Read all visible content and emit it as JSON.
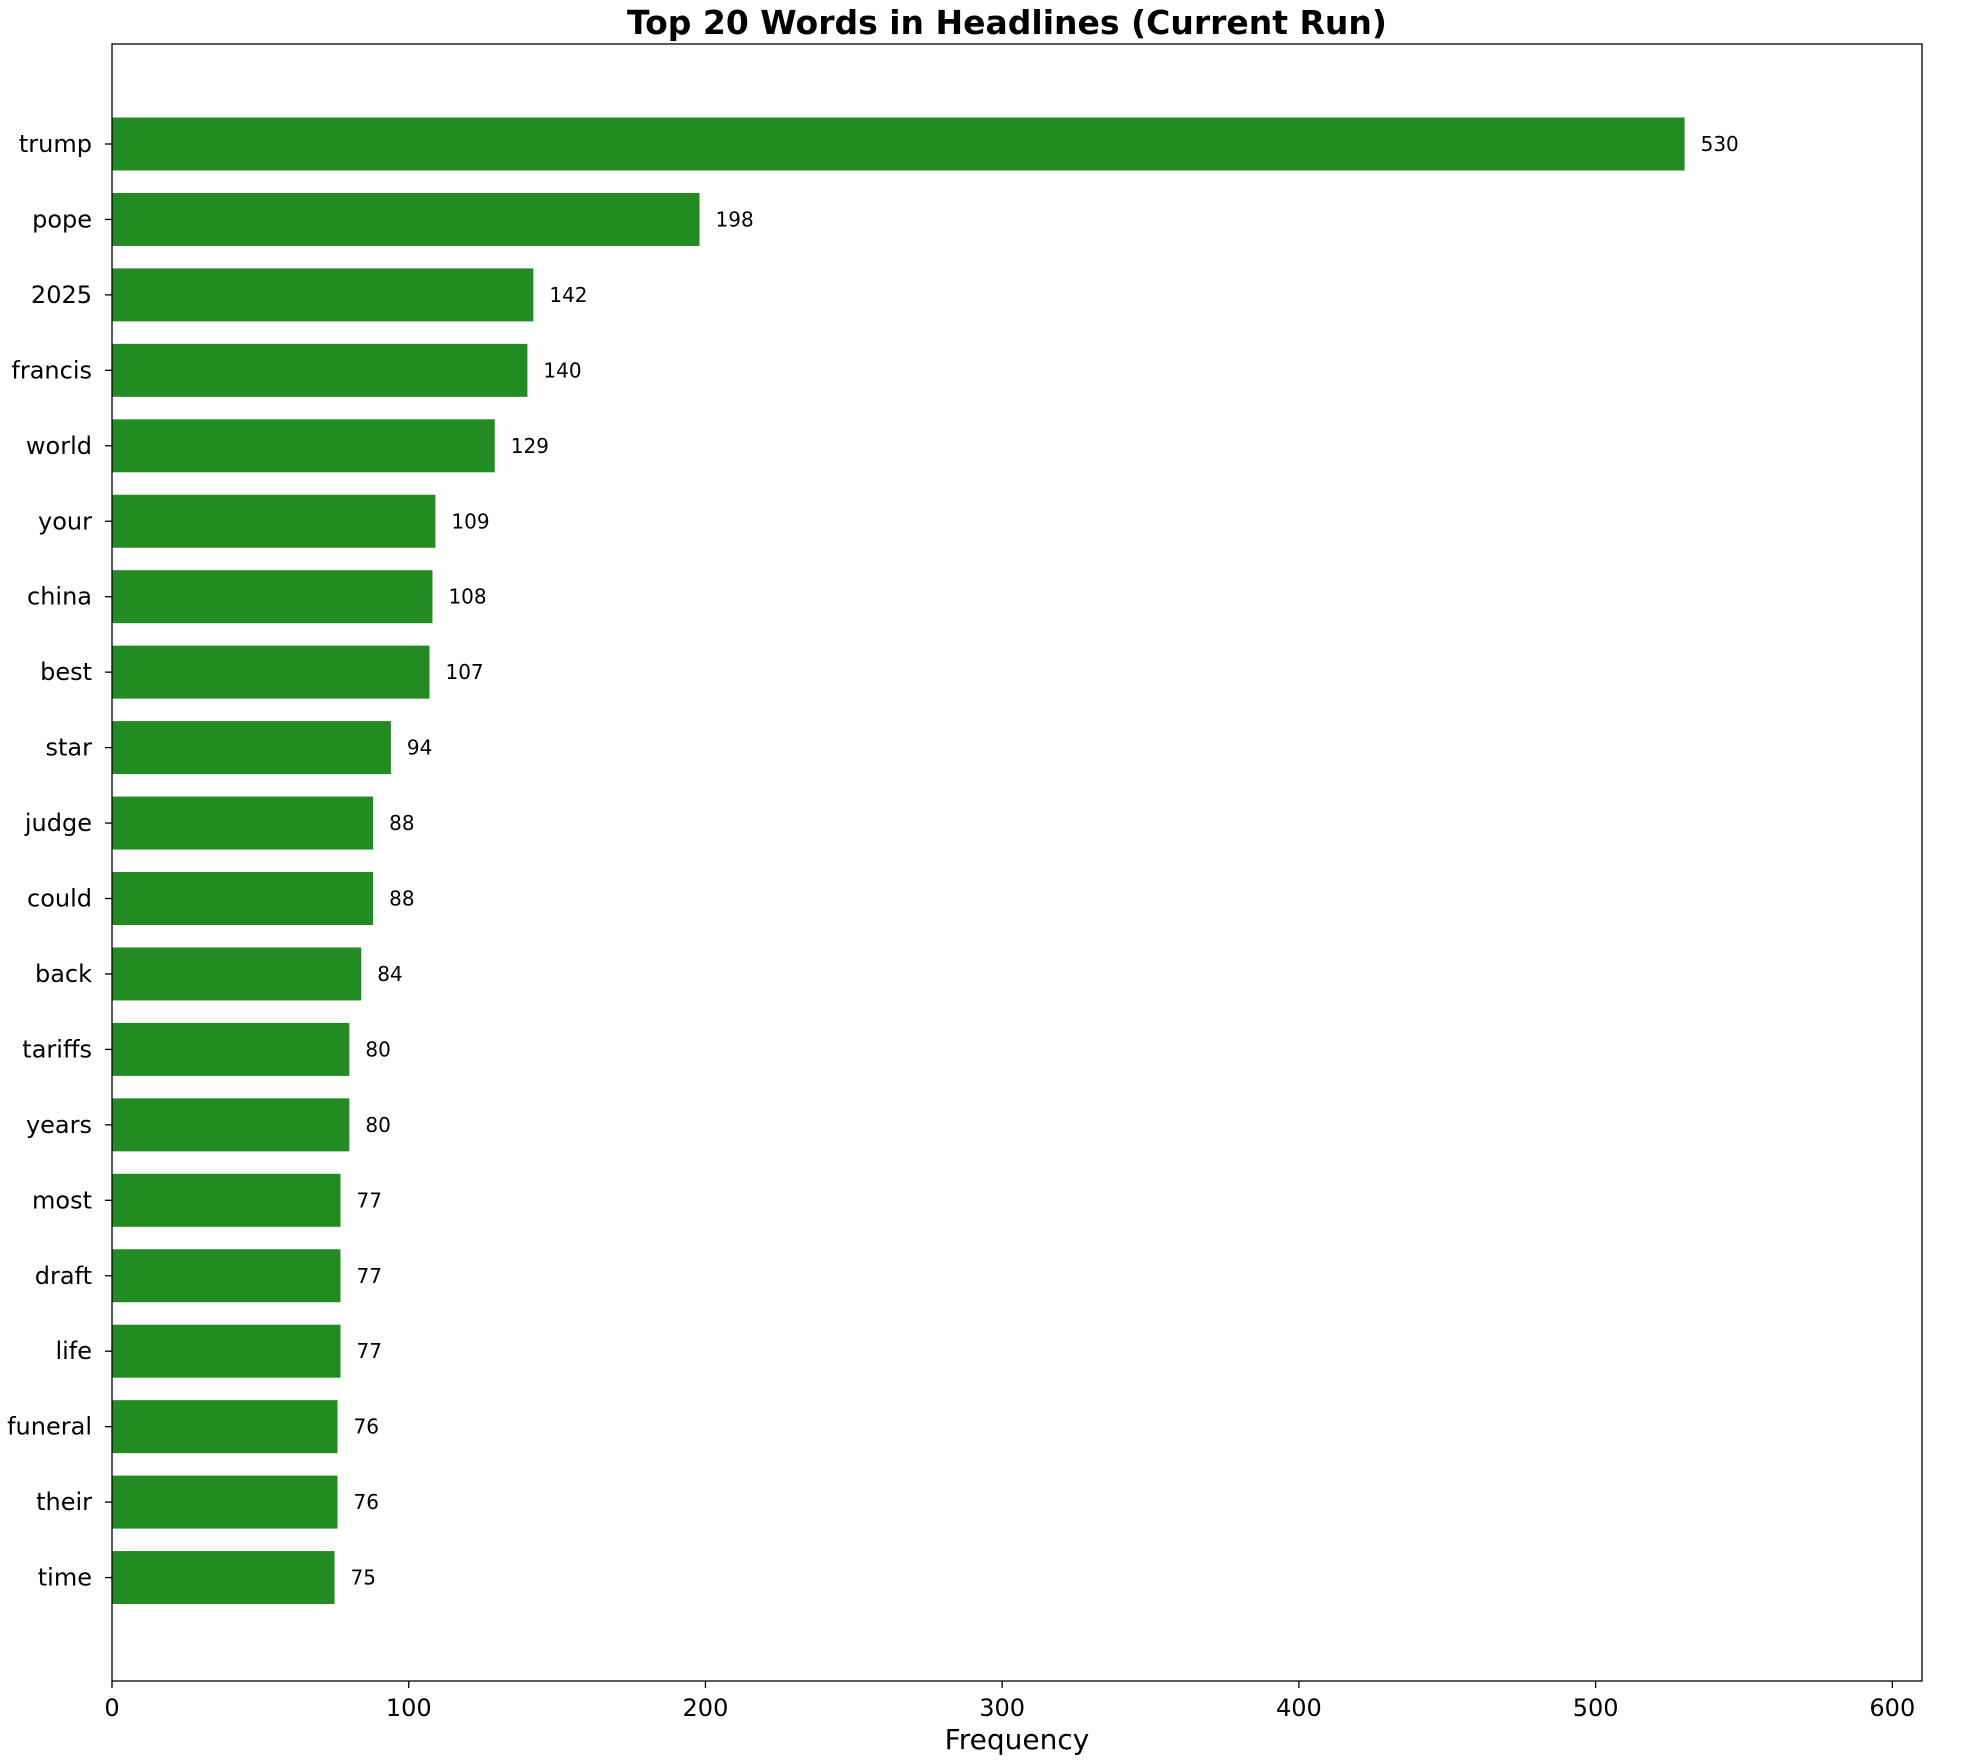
{
  "chart_data": {
    "type": "bar",
    "orientation": "horizontal",
    "title": "Top 20 Words in Headlines (Current Run)",
    "xlabel": "Frequency",
    "ylabel": "",
    "xlim": [
      0,
      610
    ],
    "xticks": [
      0,
      100,
      200,
      300,
      400,
      500,
      600
    ],
    "bar_color": "#228B22",
    "grid": false,
    "categories": [
      "trump",
      "pope",
      "2025",
      "francis",
      "world",
      "your",
      "china",
      "best",
      "star",
      "judge",
      "could",
      "back",
      "tariffs",
      "years",
      "most",
      "draft",
      "life",
      "funeral",
      "their",
      "time"
    ],
    "values": [
      530,
      198,
      142,
      140,
      129,
      109,
      108,
      107,
      94,
      88,
      88,
      84,
      80,
      80,
      77,
      77,
      77,
      76,
      76,
      75
    ],
    "data_labels": [
      "530",
      "198",
      "142",
      "140",
      "129",
      "109",
      "108",
      "107",
      "94",
      "88",
      "88",
      "84",
      "80",
      "80",
      "77",
      "77",
      "77",
      "76",
      "76",
      "75"
    ]
  }
}
